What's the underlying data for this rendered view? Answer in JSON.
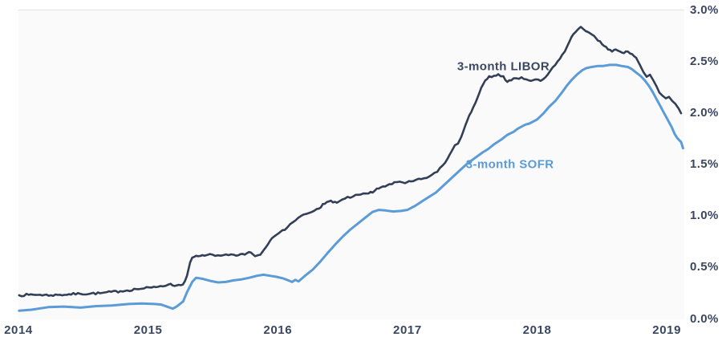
{
  "chart_data": {
    "type": "line",
    "title": "",
    "xlabel": "",
    "ylabel": "",
    "xlim": [
      2014,
      2019.135
    ],
    "ylim": [
      0,
      3.0
    ],
    "grid": "off",
    "legend_position": "inline-labels",
    "plot_background": "#fafafa",
    "page_background": "#ffffff",
    "axis_text_color": "#3b4760",
    "x_ticks": [
      {
        "value": 2014,
        "label": "2014"
      },
      {
        "value": 2015,
        "label": "2015"
      },
      {
        "value": 2016,
        "label": "2016"
      },
      {
        "value": 2017,
        "label": "2017"
      },
      {
        "value": 2018,
        "label": "2018"
      },
      {
        "value": 2019,
        "label": "2019"
      }
    ],
    "y_ticks": [
      {
        "value": 0.0,
        "label": "0.0%"
      },
      {
        "value": 0.5,
        "label": "0.5%"
      },
      {
        "value": 1.0,
        "label": "1.0%"
      },
      {
        "value": 1.5,
        "label": "1.5%"
      },
      {
        "value": 2.0,
        "label": "2.0%"
      },
      {
        "value": 2.5,
        "label": "2.5%"
      },
      {
        "value": 3.0,
        "label": "3.0%"
      }
    ],
    "series": [
      {
        "id": "libor",
        "name": "3-month LIBOR",
        "color": "#333f57",
        "stroke_width": 2.6,
        "noise": 0.011,
        "points": [
          [
            2014.005,
            0.23
          ],
          [
            2014.08,
            0.235
          ],
          [
            2014.167,
            0.235
          ],
          [
            2014.25,
            0.23
          ],
          [
            2014.32,
            0.235
          ],
          [
            2014.476,
            0.245
          ],
          [
            2014.63,
            0.25
          ],
          [
            2014.786,
            0.27
          ],
          [
            2014.91,
            0.29
          ],
          [
            2015.027,
            0.305
          ],
          [
            2015.095,
            0.32
          ],
          [
            2015.157,
            0.335
          ],
          [
            2015.22,
            0.325
          ],
          [
            2015.268,
            0.335
          ],
          [
            2015.3,
            0.42
          ],
          [
            2015.324,
            0.55
          ],
          [
            2015.34,
            0.595
          ],
          [
            2015.386,
            0.61
          ],
          [
            2015.435,
            0.615
          ],
          [
            2015.497,
            0.625
          ],
          [
            2015.56,
            0.615
          ],
          [
            2015.62,
            0.62
          ],
          [
            2015.68,
            0.615
          ],
          [
            2015.745,
            0.625
          ],
          [
            2015.776,
            0.65
          ],
          [
            2015.807,
            0.63
          ],
          [
            2015.825,
            0.61
          ],
          [
            2015.85,
            0.62
          ],
          [
            2015.88,
            0.65
          ],
          [
            2015.91,
            0.7
          ],
          [
            2015.94,
            0.76
          ],
          [
            2015.97,
            0.8
          ],
          [
            2016.004,
            0.83
          ],
          [
            2016.054,
            0.865
          ],
          [
            2016.116,
            0.94
          ],
          [
            2016.178,
            1.0
          ],
          [
            2016.24,
            1.03
          ],
          [
            2016.3,
            1.07
          ],
          [
            2016.363,
            1.12
          ],
          [
            2016.41,
            1.15
          ],
          [
            2016.456,
            1.13
          ],
          [
            2016.518,
            1.17
          ],
          [
            2016.58,
            1.19
          ],
          [
            2016.64,
            1.21
          ],
          [
            2016.7,
            1.22
          ],
          [
            2016.747,
            1.245
          ],
          [
            2016.796,
            1.28
          ],
          [
            2016.86,
            1.31
          ],
          [
            2016.92,
            1.33
          ],
          [
            2016.98,
            1.32
          ],
          [
            2017.044,
            1.34
          ],
          [
            2017.106,
            1.36
          ],
          [
            2017.168,
            1.385
          ],
          [
            2017.23,
            1.43
          ],
          [
            2017.27,
            1.49
          ],
          [
            2017.31,
            1.56
          ],
          [
            2017.34,
            1.63
          ],
          [
            2017.366,
            1.69
          ],
          [
            2017.39,
            1.705
          ],
          [
            2017.415,
            1.77
          ],
          [
            2017.446,
            1.88
          ],
          [
            2017.477,
            1.98
          ],
          [
            2017.508,
            2.06
          ],
          [
            2017.54,
            2.15
          ],
          [
            2017.57,
            2.25
          ],
          [
            2017.6,
            2.32
          ],
          [
            2017.63,
            2.36
          ],
          [
            2017.668,
            2.365
          ],
          [
            2017.7,
            2.38
          ],
          [
            2017.74,
            2.36
          ],
          [
            2017.77,
            2.305
          ],
          [
            2017.8,
            2.32
          ],
          [
            2017.84,
            2.34
          ],
          [
            2017.88,
            2.35
          ],
          [
            2017.916,
            2.33
          ],
          [
            2017.953,
            2.315
          ],
          [
            2017.99,
            2.33
          ],
          [
            2018.027,
            2.315
          ],
          [
            2018.064,
            2.35
          ],
          [
            2018.1,
            2.41
          ],
          [
            2018.14,
            2.47
          ],
          [
            2018.176,
            2.53
          ],
          [
            2018.213,
            2.6
          ],
          [
            2018.25,
            2.7
          ],
          [
            2018.28,
            2.77
          ],
          [
            2018.31,
            2.81
          ],
          [
            2018.337,
            2.84
          ],
          [
            2018.36,
            2.815
          ],
          [
            2018.392,
            2.79
          ],
          [
            2018.423,
            2.765
          ],
          [
            2018.454,
            2.73
          ],
          [
            2018.485,
            2.7
          ],
          [
            2018.516,
            2.655
          ],
          [
            2018.547,
            2.62
          ],
          [
            2018.578,
            2.6
          ],
          [
            2018.608,
            2.62
          ],
          [
            2018.64,
            2.6
          ],
          [
            2018.67,
            2.585
          ],
          [
            2018.7,
            2.6
          ],
          [
            2018.733,
            2.575
          ],
          [
            2018.764,
            2.54
          ],
          [
            2018.795,
            2.465
          ],
          [
            2018.82,
            2.4
          ],
          [
            2018.845,
            2.355
          ],
          [
            2018.87,
            2.375
          ],
          [
            2018.894,
            2.325
          ],
          [
            2018.92,
            2.265
          ],
          [
            2018.943,
            2.2
          ],
          [
            2018.968,
            2.17
          ],
          [
            2018.993,
            2.145
          ],
          [
            2019.017,
            2.16
          ],
          [
            2019.042,
            2.12
          ],
          [
            2019.067,
            2.09
          ],
          [
            2019.092,
            2.045
          ],
          [
            2019.11,
            2.0
          ]
        ]
      },
      {
        "id": "sofr",
        "name": "3-month SOFR",
        "color": "#5b9bd8",
        "stroke_width": 3,
        "noise": 0,
        "points": [
          [
            2014.005,
            0.08
          ],
          [
            2014.1,
            0.09
          ],
          [
            2014.23,
            0.115
          ],
          [
            2014.35,
            0.12
          ],
          [
            2014.48,
            0.11
          ],
          [
            2014.6,
            0.125
          ],
          [
            2014.72,
            0.13
          ],
          [
            2014.85,
            0.145
          ],
          [
            2014.95,
            0.15
          ],
          [
            2015.05,
            0.145
          ],
          [
            2015.1,
            0.14
          ],
          [
            2015.157,
            0.115
          ],
          [
            2015.19,
            0.1
          ],
          [
            2015.22,
            0.12
          ],
          [
            2015.27,
            0.17
          ],
          [
            2015.3,
            0.26
          ],
          [
            2015.34,
            0.36
          ],
          [
            2015.37,
            0.4
          ],
          [
            2015.42,
            0.39
          ],
          [
            2015.48,
            0.37
          ],
          [
            2015.54,
            0.355
          ],
          [
            2015.6,
            0.36
          ],
          [
            2015.66,
            0.375
          ],
          [
            2015.72,
            0.385
          ],
          [
            2015.78,
            0.4
          ],
          [
            2015.84,
            0.42
          ],
          [
            2015.89,
            0.43
          ],
          [
            2015.94,
            0.42
          ],
          [
            2015.99,
            0.41
          ],
          [
            2016.04,
            0.395
          ],
          [
            2016.08,
            0.375
          ],
          [
            2016.11,
            0.36
          ],
          [
            2016.135,
            0.38
          ],
          [
            2016.16,
            0.365
          ],
          [
            2016.21,
            0.42
          ],
          [
            2016.27,
            0.48
          ],
          [
            2016.33,
            0.56
          ],
          [
            2016.39,
            0.65
          ],
          [
            2016.44,
            0.72
          ],
          [
            2016.5,
            0.8
          ],
          [
            2016.56,
            0.87
          ],
          [
            2016.62,
            0.93
          ],
          [
            2016.68,
            0.99
          ],
          [
            2016.73,
            1.04
          ],
          [
            2016.78,
            1.06
          ],
          [
            2016.83,
            1.055
          ],
          [
            2016.89,
            1.045
          ],
          [
            2016.95,
            1.05
          ],
          [
            2017.0,
            1.06
          ],
          [
            2017.06,
            1.1
          ],
          [
            2017.12,
            1.15
          ],
          [
            2017.17,
            1.19
          ],
          [
            2017.22,
            1.23
          ],
          [
            2017.28,
            1.3
          ],
          [
            2017.34,
            1.37
          ],
          [
            2017.4,
            1.44
          ],
          [
            2017.46,
            1.51
          ],
          [
            2017.52,
            1.565
          ],
          [
            2017.58,
            1.62
          ],
          [
            2017.62,
            1.65
          ],
          [
            2017.67,
            1.7
          ],
          [
            2017.73,
            1.75
          ],
          [
            2017.77,
            1.79
          ],
          [
            2017.82,
            1.82
          ],
          [
            2017.85,
            1.85
          ],
          [
            2017.88,
            1.87
          ],
          [
            2017.91,
            1.89
          ],
          [
            2017.94,
            1.9
          ],
          [
            2017.97,
            1.92
          ],
          [
            2018.0,
            1.94
          ],
          [
            2018.05,
            2.0
          ],
          [
            2018.09,
            2.06
          ],
          [
            2018.14,
            2.12
          ],
          [
            2018.19,
            2.2
          ],
          [
            2018.23,
            2.27
          ],
          [
            2018.27,
            2.33
          ],
          [
            2018.31,
            2.38
          ],
          [
            2018.35,
            2.42
          ],
          [
            2018.38,
            2.44
          ],
          [
            2018.42,
            2.45
          ],
          [
            2018.47,
            2.46
          ],
          [
            2018.51,
            2.46
          ],
          [
            2018.56,
            2.47
          ],
          [
            2018.61,
            2.47
          ],
          [
            2018.65,
            2.46
          ],
          [
            2018.7,
            2.45
          ],
          [
            2018.73,
            2.43
          ],
          [
            2018.76,
            2.4
          ],
          [
            2018.8,
            2.36
          ],
          [
            2018.83,
            2.32
          ],
          [
            2018.86,
            2.27
          ],
          [
            2018.89,
            2.21
          ],
          [
            2018.92,
            2.14
          ],
          [
            2018.95,
            2.07
          ],
          [
            2018.98,
            2.0
          ],
          [
            2019.01,
            1.93
          ],
          [
            2019.04,
            1.86
          ],
          [
            2019.06,
            1.8
          ],
          [
            2019.08,
            1.76
          ],
          [
            2019.095,
            1.74
          ],
          [
            2019.11,
            1.72
          ],
          [
            2019.125,
            1.66
          ]
        ]
      }
    ],
    "annotations": [
      {
        "id": "libor-label",
        "text": "3-month LIBOR",
        "x": 2017.74,
        "y": 2.45,
        "color": "#3b4760"
      },
      {
        "id": "sofr-label",
        "text": "3-month SOFR",
        "x": 2017.79,
        "y": 1.5,
        "color": "#5b9bd8"
      }
    ]
  }
}
